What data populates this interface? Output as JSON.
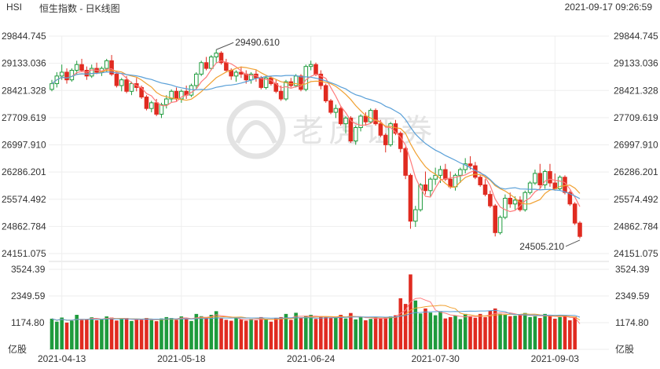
{
  "header": {
    "symbol": "HSI",
    "title": "恒生指数 - 日K线图",
    "datetime": "2021-09-17 09:26:59"
  },
  "watermark": {
    "text": "老虎证券"
  },
  "colors": {
    "up": "#1e9b3c",
    "down": "#e02b20",
    "ma5": "#ff7a7a",
    "ma10": "#f0a030",
    "ma20": "#5aa0d8",
    "grid": "#eeeeee",
    "axis_text": "#333333"
  },
  "chart_data": [
    {
      "type": "candlestick",
      "title": "恒生指数 - 日K线图",
      "y_ticks": [
        "29844.745",
        "29133.036",
        "28421.328",
        "27709.619",
        "26997.910",
        "26286.201",
        "25574.492",
        "24862.784",
        "24151.075"
      ],
      "ylim": [
        24151.075,
        29844.745
      ],
      "x_ticks": [
        "2021-04-13",
        "2021-05-18",
        "2021-06-24",
        "2021-07-30",
        "2021-09-03"
      ],
      "x_range": [
        "2021-04-09",
        "2021-09-17"
      ],
      "annotations": [
        {
          "label": "29490.610",
          "value": 29490.61,
          "kind": "high"
        },
        {
          "label": "24505.210",
          "value": 24505.21,
          "kind": "low"
        }
      ],
      "series_moving_averages": [
        "MA5",
        "MA10",
        "MA20"
      ],
      "candles": [
        [
          28450,
          28700,
          28400,
          28600
        ],
        [
          28600,
          28900,
          28500,
          28800
        ],
        [
          28800,
          29100,
          28700,
          28900
        ],
        [
          28900,
          29000,
          28600,
          28700
        ],
        [
          28700,
          29000,
          28650,
          28950
        ],
        [
          28950,
          29200,
          28850,
          29100
        ],
        [
          29100,
          29250,
          28900,
          28950
        ],
        [
          28950,
          29050,
          28700,
          28800
        ],
        [
          28800,
          29100,
          28750,
          29000
        ],
        [
          29000,
          29150,
          28850,
          28900
        ],
        [
          28900,
          29050,
          28800,
          29000
        ],
        [
          29000,
          29250,
          28900,
          29200
        ],
        [
          29200,
          29350,
          28800,
          28850
        ],
        [
          28850,
          28900,
          28500,
          28550
        ],
        [
          28550,
          28750,
          28400,
          28700
        ],
        [
          28700,
          28800,
          28350,
          28400
        ],
        [
          28400,
          28650,
          28300,
          28600
        ],
        [
          28600,
          28750,
          28400,
          28500
        ],
        [
          28500,
          28550,
          28200,
          28250
        ],
        [
          28250,
          28300,
          27900,
          27950
        ],
        [
          27950,
          28150,
          27850,
          28100
        ],
        [
          28100,
          28200,
          27750,
          27800
        ],
        [
          27800,
          28100,
          27700,
          28050
        ],
        [
          28050,
          28300,
          27950,
          28200
        ],
        [
          28200,
          28450,
          28100,
          28400
        ],
        [
          28400,
          28500,
          28150,
          28200
        ],
        [
          28200,
          28450,
          28100,
          28400
        ],
        [
          28400,
          28550,
          28200,
          28300
        ],
        [
          28300,
          28600,
          28250,
          28550
        ],
        [
          28550,
          28900,
          28450,
          28850
        ],
        [
          28850,
          29200,
          28800,
          29150
        ],
        [
          29150,
          29300,
          28950,
          29000
        ],
        [
          29000,
          29350,
          28950,
          29300
        ],
        [
          29300,
          29490,
          29150,
          29400
        ],
        [
          29400,
          29450,
          29100,
          29150
        ],
        [
          29150,
          29250,
          28900,
          28950
        ],
        [
          28950,
          29000,
          28700,
          28800
        ],
        [
          28800,
          28950,
          28650,
          28900
        ],
        [
          28900,
          29050,
          28750,
          28850
        ],
        [
          28850,
          28950,
          28600,
          28700
        ],
        [
          28700,
          28900,
          28600,
          28850
        ],
        [
          28850,
          28950,
          28650,
          28750
        ],
        [
          28750,
          28800,
          28450,
          28500
        ],
        [
          28500,
          28800,
          28450,
          28750
        ],
        [
          28750,
          28800,
          28550,
          28600
        ],
        [
          28600,
          28700,
          28350,
          28400
        ],
        [
          28400,
          28550,
          28150,
          28200
        ],
        [
          28200,
          28700,
          28150,
          28650
        ],
        [
          28650,
          28750,
          28500,
          28550
        ],
        [
          28550,
          28850,
          28500,
          28800
        ],
        [
          28800,
          28850,
          28400,
          28450
        ],
        [
          28450,
          29100,
          28400,
          29050
        ],
        [
          29050,
          29200,
          28950,
          29100
        ],
        [
          29100,
          29150,
          28800,
          28850
        ],
        [
          28850,
          28950,
          28450,
          28550
        ],
        [
          28550,
          28600,
          28100,
          28150
        ],
        [
          28150,
          28200,
          27800,
          27850
        ],
        [
          27850,
          28050,
          27700,
          27950
        ],
        [
          27950,
          28000,
          27500,
          27550
        ],
        [
          27550,
          27750,
          27300,
          27700
        ],
        [
          27700,
          27750,
          27050,
          27100
        ],
        [
          27100,
          27500,
          27000,
          27450
        ],
        [
          27450,
          27800,
          27350,
          27750
        ],
        [
          27750,
          27850,
          27500,
          27600
        ],
        [
          27600,
          27950,
          27550,
          27900
        ],
        [
          27900,
          27950,
          27500,
          27550
        ],
        [
          27550,
          27650,
          27200,
          27250
        ],
        [
          27250,
          27300,
          26800,
          27000
        ],
        [
          27000,
          27600,
          26950,
          27550
        ],
        [
          27550,
          27650,
          27250,
          27300
        ],
        [
          27300,
          27350,
          26800,
          26900
        ],
        [
          26900,
          26950,
          26100,
          26200
        ],
        [
          26200,
          26250,
          24800,
          25000
        ],
        [
          25000,
          25400,
          24850,
          25300
        ],
        [
          25300,
          26000,
          25250,
          25950
        ],
        [
          25950,
          26300,
          25700,
          25800
        ],
        [
          25800,
          26150,
          25650,
          26100
        ],
        [
          26100,
          26400,
          25950,
          26200
        ],
        [
          26200,
          26450,
          26000,
          26350
        ],
        [
          26350,
          26500,
          26050,
          26100
        ],
        [
          26100,
          26300,
          25850,
          25900
        ],
        [
          25900,
          26250,
          25800,
          26200
        ],
        [
          26200,
          26400,
          26000,
          26350
        ],
        [
          26350,
          26650,
          26250,
          26500
        ],
        [
          26500,
          26700,
          26350,
          26450
        ],
        [
          26450,
          26550,
          26100,
          26150
        ],
        [
          26150,
          26200,
          25900,
          25950
        ],
        [
          25950,
          26100,
          25650,
          25700
        ],
        [
          25700,
          25800,
          25350,
          25400
        ],
        [
          25400,
          25450,
          24600,
          24700
        ],
        [
          24700,
          25150,
          24650,
          25100
        ],
        [
          25100,
          25700,
          25050,
          25600
        ],
        [
          25600,
          25750,
          25350,
          25450
        ],
        [
          25450,
          25650,
          25300,
          25550
        ],
        [
          25550,
          25650,
          25250,
          25300
        ],
        [
          25300,
          25800,
          25250,
          25750
        ],
        [
          25750,
          26050,
          25700,
          26000
        ],
        [
          26000,
          26350,
          25950,
          26250
        ],
        [
          26250,
          26500,
          25850,
          25950
        ],
        [
          25950,
          26350,
          25850,
          26300
        ],
        [
          26300,
          26500,
          25900,
          26000
        ],
        [
          26000,
          26250,
          25800,
          25850
        ],
        [
          25850,
          26200,
          25800,
          26150
        ],
        [
          26150,
          26200,
          25700,
          25750
        ],
        [
          25750,
          25800,
          25400,
          25450
        ],
        [
          25450,
          25500,
          24900,
          24950
        ],
        [
          24950,
          25000,
          24550,
          24600
        ]
      ],
      "volume_panel": {
        "y_ticks": [
          "3524.39",
          "2349.59",
          "1174.80",
          "亿股"
        ],
        "ylim": [
          0,
          3524.39
        ],
        "unit": "亿股",
        "volumes": [
          1350,
          1220,
          1400,
          1180,
          1260,
          1520,
          1290,
          1330,
          1410,
          1280,
          1350,
          1450,
          1400,
          1270,
          1330,
          1380,
          1250,
          1320,
          1300,
          1380,
          1290,
          1240,
          1360,
          1420,
          1380,
          1300,
          1450,
          1370,
          1250,
          1560,
          1460,
          1400,
          1520,
          1680,
          1360,
          1300,
          1260,
          1380,
          1320,
          1260,
          1340,
          1280,
          1420,
          1340,
          1220,
          1380,
          1420,
          1560,
          1300,
          1610,
          1380,
          1480,
          1520,
          1340,
          1460,
          1420,
          1380,
          1440,
          1520,
          1360,
          1600,
          1320,
          1420,
          1280,
          1340,
          1430,
          1360,
          1400,
          1450,
          1500,
          2250,
          2000,
          3300,
          2150,
          1580,
          1800,
          1620,
          1500,
          1680,
          1360,
          1420,
          1480,
          1330,
          1560,
          1460,
          1390,
          1560,
          1420,
          1700,
          1800,
          1560,
          1520,
          1460,
          1480,
          1510,
          1600,
          1420,
          1460,
          1380,
          1560,
          1500,
          1350,
          1420,
          1500,
          1280,
          1440,
          0
        ]
      }
    }
  ]
}
